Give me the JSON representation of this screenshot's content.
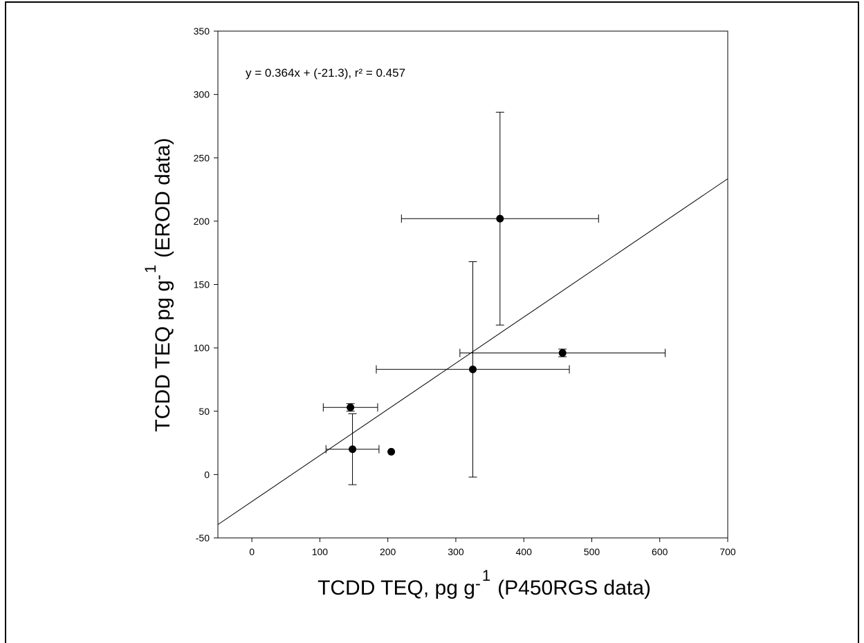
{
  "chart_data": {
    "type": "scatter",
    "annotation": "y = 0.364x + (-21.3),  r² = 0.457",
    "xlabel": [
      "TCDD TEQ, pg g",
      "-",
      "1",
      "(P450RGS data)"
    ],
    "ylabel": [
      "TCDD TEQ pg g",
      "-",
      "1",
      "(EROD data)"
    ],
    "x": [
      148,
      145,
      205,
      325,
      457,
      365
    ],
    "values": [
      20,
      53,
      18,
      83,
      96,
      202
    ],
    "xerr": [
      39,
      40,
      null,
      142,
      151,
      145
    ],
    "yerr": [
      28,
      3,
      null,
      85,
      3,
      84
    ],
    "color": "#000000",
    "fit": {
      "slope": 0.364,
      "intercept": -21.3
    },
    "xlim": [
      -50,
      700
    ],
    "ylim": [
      -50,
      350
    ],
    "xticks": [
      0,
      100,
      200,
      300,
      400,
      500,
      600,
      700
    ],
    "yticks": [
      -50,
      0,
      50,
      100,
      150,
      200,
      250,
      300,
      350
    ]
  }
}
